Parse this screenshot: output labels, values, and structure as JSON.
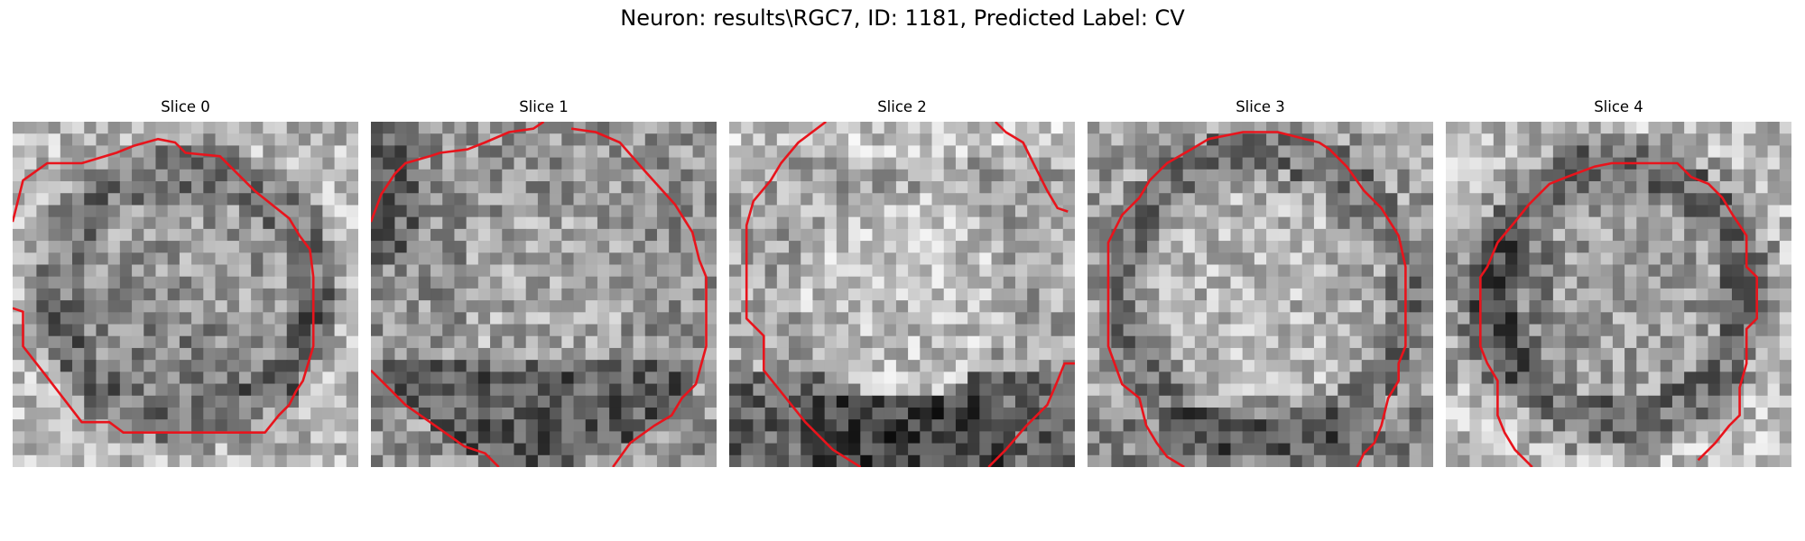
{
  "figure": {
    "title": "Neuron: results\\RGC7, ID: 1181, Predicted Label: CV"
  },
  "colors": {
    "contour": "#e8141c",
    "background": "#ffffff"
  },
  "panels": [
    {
      "title": "Slice 0",
      "seed": 11,
      "pattern": "ring-inner-dark",
      "contour": [
        [
          0,
          0.29
        ],
        [
          0.03,
          0.17
        ],
        [
          0.1,
          0.12
        ],
        [
          0.2,
          0.12
        ],
        [
          0.3,
          0.09
        ],
        [
          0.35,
          0.07
        ],
        [
          0.42,
          0.05
        ],
        [
          0.47,
          0.06
        ],
        [
          0.5,
          0.09
        ],
        [
          0.6,
          0.1
        ],
        [
          0.7,
          0.2
        ],
        [
          0.8,
          0.28
        ],
        [
          0.83,
          0.33
        ],
        [
          0.86,
          0.37
        ],
        [
          0.87,
          0.45
        ],
        [
          0.87,
          0.65
        ],
        [
          0.84,
          0.75
        ],
        [
          0.82,
          0.78
        ],
        [
          0.8,
          0.82
        ],
        [
          0.77,
          0.85
        ],
        [
          0.73,
          0.9
        ],
        [
          0.66,
          0.9
        ],
        [
          0.32,
          0.9
        ],
        [
          0.28,
          0.87
        ],
        [
          0.2,
          0.87
        ],
        [
          0.1,
          0.74
        ],
        [
          0.03,
          0.65
        ],
        [
          0.03,
          0.55
        ],
        [
          0.0,
          0.54
        ]
      ]
    },
    {
      "title": "Slice 1",
      "seed": 23,
      "pattern": "bottom-dark",
      "contour": [
        [
          0,
          0.29
        ],
        [
          0.03,
          0.21
        ],
        [
          0.07,
          0.15
        ],
        [
          0.1,
          0.12
        ],
        [
          0.17,
          0.1
        ],
        [
          0.2,
          0.09
        ],
        [
          0.28,
          0.08
        ],
        [
          0.33,
          0.06
        ],
        [
          0.4,
          0.03
        ],
        [
          0.47,
          0.02
        ],
        [
          0.5,
          0.0
        ]
      ],
      "contour2": [
        [
          0.58,
          0.02
        ],
        [
          0.65,
          0.03
        ],
        [
          0.72,
          0.06
        ],
        [
          0.79,
          0.14
        ],
        [
          0.88,
          0.24
        ],
        [
          0.93,
          0.32
        ],
        [
          0.95,
          0.4
        ],
        [
          0.97,
          0.45
        ],
        [
          0.97,
          0.65
        ],
        [
          0.94,
          0.76
        ],
        [
          0.9,
          0.8
        ],
        [
          0.87,
          0.85
        ],
        [
          0.82,
          0.88
        ],
        [
          0.75,
          0.93
        ],
        [
          0.7,
          1.0
        ]
      ],
      "contour3": [
        [
          0.0,
          0.72
        ],
        [
          0.06,
          0.78
        ],
        [
          0.1,
          0.82
        ],
        [
          0.2,
          0.89
        ],
        [
          0.27,
          0.94
        ],
        [
          0.33,
          0.96
        ],
        [
          0.37,
          1.0
        ]
      ]
    },
    {
      "title": "Slice 2",
      "seed": 37,
      "pattern": "bottom-corners-dark",
      "contour": [
        [
          0.28,
          0.0
        ],
        [
          0.2,
          0.06
        ],
        [
          0.15,
          0.12
        ],
        [
          0.12,
          0.17
        ],
        [
          0.07,
          0.23
        ],
        [
          0.05,
          0.3
        ],
        [
          0.05,
          0.57
        ],
        [
          0.1,
          0.62
        ],
        [
          0.1,
          0.72
        ],
        [
          0.14,
          0.77
        ],
        [
          0.22,
          0.87
        ],
        [
          0.3,
          0.95
        ],
        [
          0.38,
          1.0
        ]
      ],
      "contour2": [
        [
          0.77,
          0.0
        ],
        [
          0.8,
          0.03
        ],
        [
          0.85,
          0.06
        ],
        [
          0.88,
          0.12
        ],
        [
          0.9,
          0.16
        ],
        [
          0.92,
          0.2
        ],
        [
          0.95,
          0.25
        ],
        [
          0.98,
          0.26
        ]
      ],
      "contour3": [
        [
          0.75,
          1.0
        ],
        [
          0.8,
          0.95
        ],
        [
          0.86,
          0.88
        ],
        [
          0.92,
          0.82
        ],
        [
          0.95,
          0.75
        ],
        [
          0.97,
          0.7
        ],
        [
          1.0,
          0.7
        ]
      ]
    },
    {
      "title": "Slice 3",
      "seed": 51,
      "pattern": "ring-bottom-dark",
      "contour": [
        [
          0.28,
          1.0
        ],
        [
          0.23,
          0.97
        ],
        [
          0.2,
          0.93
        ],
        [
          0.17,
          0.88
        ],
        [
          0.15,
          0.8
        ],
        [
          0.1,
          0.76
        ],
        [
          0.06,
          0.65
        ],
        [
          0.06,
          0.35
        ],
        [
          0.1,
          0.27
        ],
        [
          0.13,
          0.24
        ],
        [
          0.15,
          0.22
        ],
        [
          0.18,
          0.17
        ],
        [
          0.23,
          0.12
        ],
        [
          0.3,
          0.08
        ],
        [
          0.35,
          0.05
        ],
        [
          0.45,
          0.03
        ],
        [
          0.55,
          0.03
        ],
        [
          0.63,
          0.05
        ],
        [
          0.67,
          0.06
        ],
        [
          0.7,
          0.08
        ],
        [
          0.75,
          0.13
        ],
        [
          0.8,
          0.2
        ],
        [
          0.85,
          0.25
        ],
        [
          0.9,
          0.33
        ],
        [
          0.92,
          0.42
        ],
        [
          0.92,
          0.65
        ],
        [
          0.9,
          0.7
        ],
        [
          0.9,
          0.75
        ],
        [
          0.87,
          0.8
        ],
        [
          0.85,
          0.88
        ],
        [
          0.83,
          0.93
        ],
        [
          0.8,
          0.96
        ],
        [
          0.78,
          1.0
        ]
      ]
    },
    {
      "title": "Slice 4",
      "seed": 67,
      "pattern": "ring-left-dark",
      "contour": [
        [
          0.25,
          1.0
        ],
        [
          0.2,
          0.95
        ],
        [
          0.17,
          0.9
        ],
        [
          0.15,
          0.85
        ],
        [
          0.15,
          0.75
        ],
        [
          0.12,
          0.7
        ],
        [
          0.1,
          0.65
        ],
        [
          0.1,
          0.45
        ],
        [
          0.12,
          0.42
        ],
        [
          0.15,
          0.35
        ],
        [
          0.2,
          0.29
        ],
        [
          0.24,
          0.24
        ],
        [
          0.3,
          0.18
        ],
        [
          0.35,
          0.16
        ],
        [
          0.43,
          0.13
        ],
        [
          0.48,
          0.12
        ],
        [
          0.57,
          0.12
        ],
        [
          0.6,
          0.12
        ],
        [
          0.67,
          0.12
        ],
        [
          0.71,
          0.16
        ],
        [
          0.76,
          0.18
        ],
        [
          0.8,
          0.22
        ],
        [
          0.83,
          0.27
        ],
        [
          0.87,
          0.33
        ],
        [
          0.87,
          0.42
        ],
        [
          0.9,
          0.45
        ],
        [
          0.9,
          0.57
        ],
        [
          0.87,
          0.6
        ],
        [
          0.87,
          0.7
        ],
        [
          0.85,
          0.77
        ],
        [
          0.85,
          0.85
        ],
        [
          0.82,
          0.88
        ],
        [
          0.78,
          0.93
        ],
        [
          0.73,
          0.98
        ]
      ]
    }
  ]
}
